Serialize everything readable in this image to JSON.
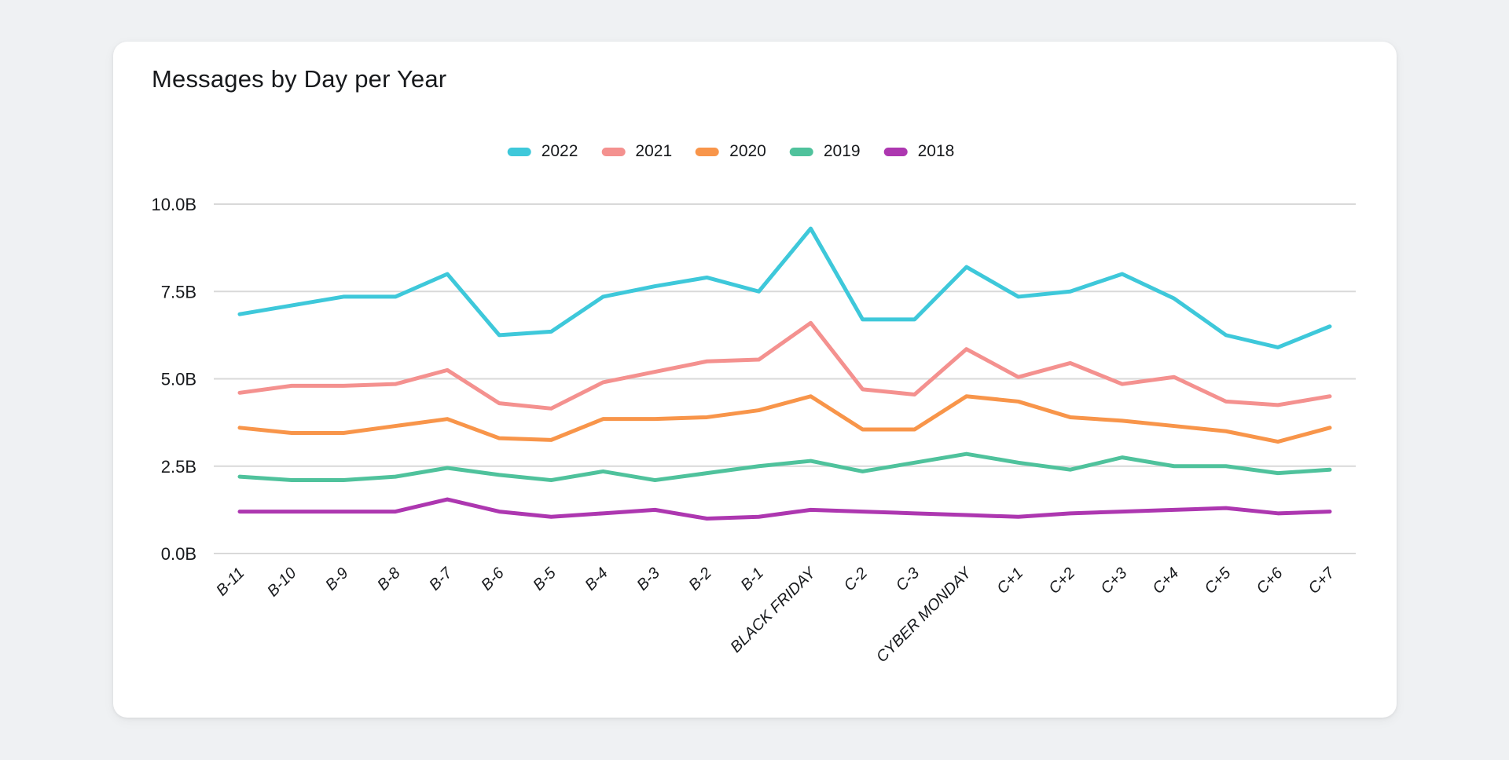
{
  "page": {
    "background_color": "#eff1f3",
    "card_color": "#ffffff"
  },
  "chart_data": {
    "type": "line",
    "title": "Messages by Day per Year",
    "unit": "B",
    "grid": "horizontal",
    "gridline_color": "#d9d9d9",
    "text_color": "#17191c",
    "legend_position": "top-center",
    "ylim": [
      0,
      10
    ],
    "y_ticks": [
      {
        "value": 10,
        "label": "10.0B"
      },
      {
        "value": 7.5,
        "label": "7.5B"
      },
      {
        "value": 5,
        "label": "5.0B"
      },
      {
        "value": 2.5,
        "label": "2.5B"
      },
      {
        "value": 0,
        "label": "0.0B"
      }
    ],
    "categories": [
      "B-11",
      "B-10",
      "B-9",
      "B-8",
      "B-7",
      "B-6",
      "B-5",
      "B-4",
      "B-3",
      "B-2",
      "B-1",
      "BLACK FRIDAY",
      "C-2",
      "C-3",
      "CYBER MONDAY",
      "C+1",
      "C+2",
      "C+3",
      "C+4",
      "C+5",
      "C+6",
      "C+7"
    ],
    "series": [
      {
        "name": "2022",
        "color": "#3ec8da",
        "values": [
          6.85,
          7.1,
          7.35,
          7.35,
          8.0,
          6.25,
          6.35,
          7.35,
          7.65,
          7.9,
          7.5,
          9.3,
          6.7,
          6.7,
          8.2,
          7.35,
          7.5,
          8.0,
          7.3,
          6.25,
          5.9,
          6.5
        ]
      },
      {
        "name": "2021",
        "color": "#f4918f",
        "values": [
          4.6,
          4.8,
          4.8,
          4.85,
          5.25,
          4.3,
          4.15,
          4.9,
          5.2,
          5.5,
          5.55,
          6.6,
          4.7,
          4.55,
          5.85,
          5.05,
          5.45,
          4.85,
          5.05,
          4.35,
          4.25,
          4.5
        ]
      },
      {
        "name": "2020",
        "color": "#f8954a",
        "values": [
          3.6,
          3.45,
          3.45,
          3.65,
          3.85,
          3.3,
          3.25,
          3.85,
          3.85,
          3.9,
          4.1,
          4.5,
          3.55,
          3.55,
          4.5,
          4.35,
          3.9,
          3.8,
          3.65,
          3.5,
          3.2,
          3.6
        ]
      },
      {
        "name": "2019",
        "color": "#4fc29c",
        "values": [
          2.2,
          2.1,
          2.1,
          2.2,
          2.45,
          2.25,
          2.1,
          2.35,
          2.1,
          2.3,
          2.5,
          2.65,
          2.35,
          2.6,
          2.85,
          2.6,
          2.4,
          2.75,
          2.5,
          2.5,
          2.3,
          2.4
        ]
      },
      {
        "name": "2018",
        "color": "#ad37b0",
        "values": [
          1.2,
          1.2,
          1.2,
          1.2,
          1.55,
          1.2,
          1.05,
          1.15,
          1.25,
          1.0,
          1.05,
          1.25,
          1.2,
          1.15,
          1.1,
          1.05,
          1.15,
          1.2,
          1.25,
          1.3,
          1.15,
          1.2
        ]
      }
    ]
  }
}
